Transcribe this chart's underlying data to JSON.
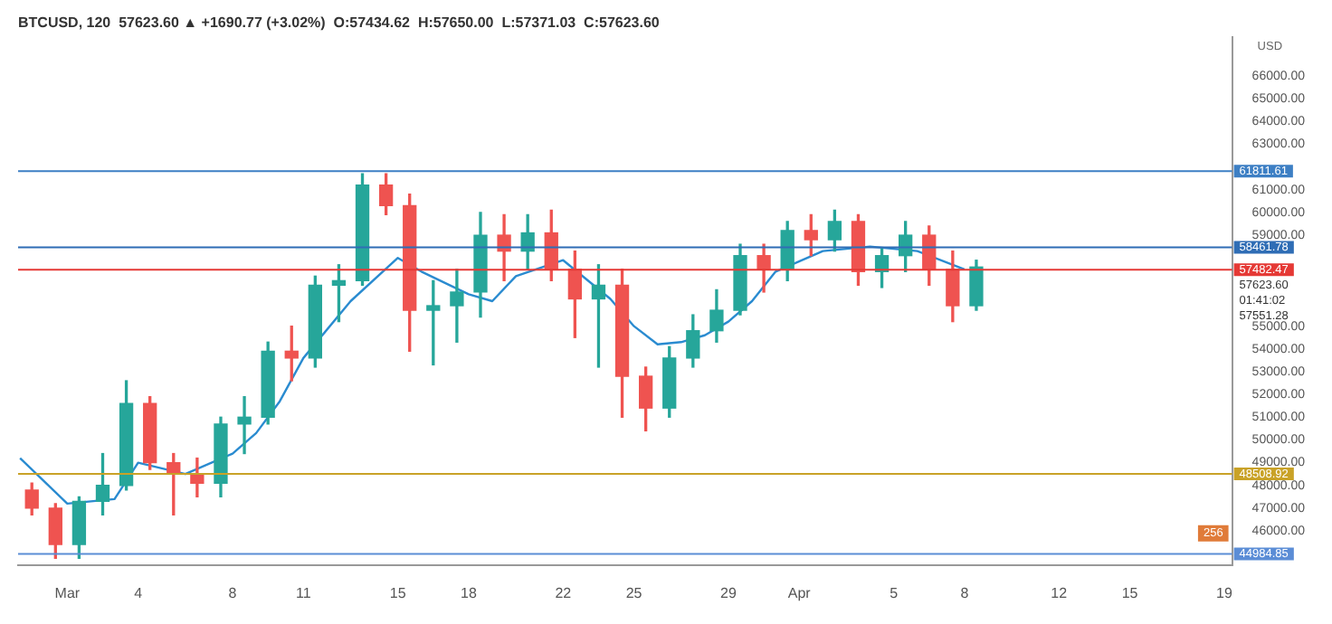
{
  "chart_data": {
    "type": "candlestick",
    "title": "BTCUSD, 120  57623.60 ▲ +1690.77 (+3.02%)  O:57434.62  H:57650.00  L:57371.03  C:57623.60",
    "x": [
      "--02-27T12:00",
      "--02-28T12:00",
      "--03-01T12:00",
      "--03-02T12:00",
      "--03-03T12:00",
      "--03-04T12:00",
      "--03-05T12:00",
      "--03-06T12:00",
      "--03-07T12:00",
      "--03-08T12:00",
      "--03-09T12:00",
      "--03-10T12:00",
      "--03-11T12:00",
      "--03-12T12:00",
      "--03-13T12:00",
      "--03-14T12:00",
      "--03-15T12:00",
      "--03-16T12:00",
      "--03-17T12:00",
      "--03-18T12:00",
      "--03-19T12:00",
      "--03-20T12:00",
      "--03-21T12:00",
      "--03-22T12:00",
      "--03-23T12:00",
      "--03-24T12:00",
      "--03-25T12:00",
      "--03-26T12:00",
      "--03-27T12:00",
      "--03-28T12:00",
      "--03-29T12:00",
      "--03-30T12:00",
      "--03-31T12:00",
      "--04-01T12:00",
      "--04-02T12:00",
      "--04-03T12:00",
      "--04-04T12:00",
      "--04-05T12:00",
      "--04-06T12:00",
      "--04-07T12:00",
      "--04-08T12:00"
    ],
    "ohlc": [
      [
        47800,
        48100,
        46700,
        47000
      ],
      [
        47000,
        47200,
        44800,
        45400
      ],
      [
        45400,
        47500,
        44800,
        47300
      ],
      [
        47300,
        49400,
        46700,
        48000
      ],
      [
        48000,
        52600,
        47800,
        51600
      ],
      [
        51600,
        51900,
        48700,
        49000
      ],
      [
        49000,
        49400,
        46700,
        48500
      ],
      [
        48500,
        49200,
        47500,
        48100
      ],
      [
        48100,
        51000,
        47500,
        50700
      ],
      [
        50700,
        51900,
        49400,
        51000
      ],
      [
        51000,
        54300,
        50700,
        53900
      ],
      [
        53900,
        55000,
        52600,
        53600
      ],
      [
        53600,
        57200,
        53200,
        56800
      ],
      [
        56800,
        57700,
        55200,
        57000
      ],
      [
        57000,
        61700,
        56800,
        61200
      ],
      [
        61200,
        61700,
        59900,
        60300
      ],
      [
        60300,
        60800,
        53900,
        55700
      ],
      [
        55700,
        57000,
        53300,
        55900
      ],
      [
        55900,
        57500,
        54300,
        56500
      ],
      [
        56500,
        60000,
        55400,
        59000
      ],
      [
        59000,
        59900,
        57000,
        58300
      ],
      [
        58300,
        59900,
        57500,
        59100
      ],
      [
        59100,
        60100,
        57000,
        57500
      ],
      [
        57500,
        58300,
        54500,
        56200
      ],
      [
        56200,
        57700,
        53200,
        56800
      ],
      [
        56800,
        57500,
        51000,
        52800
      ],
      [
        52800,
        53200,
        50400,
        51400
      ],
      [
        51400,
        54100,
        51000,
        53600
      ],
      [
        53600,
        55500,
        53200,
        54800
      ],
      [
        54800,
        56600,
        54300,
        55700
      ],
      [
        55700,
        58600,
        55500,
        58100
      ],
      [
        58100,
        58600,
        56500,
        57500
      ],
      [
        57500,
        59600,
        57000,
        59200
      ],
      [
        59200,
        59900,
        58100,
        58800
      ],
      [
        58800,
        60100,
        58300,
        59600
      ],
      [
        59600,
        59900,
        56800,
        57400
      ],
      [
        57400,
        58400,
        56700,
        58100
      ],
      [
        58100,
        59600,
        57400,
        59000
      ],
      [
        59000,
        59400,
        56800,
        57500
      ],
      [
        57500,
        58300,
        55200,
        55900
      ],
      [
        55900,
        57900,
        55700,
        57600
      ]
    ],
    "colors": [
      "#ef5350",
      "#ef5350",
      "#26a69a",
      "#26a69a",
      "#26a69a",
      "#ef5350",
      "#ef5350",
      "#ef5350",
      "#26a69a",
      "#26a69a",
      "#26a69a",
      "#ef5350",
      "#26a69a",
      "#26a69a",
      "#26a69a",
      "#ef5350",
      "#ef5350",
      "#26a69a",
      "#26a69a",
      "#26a69a",
      "#ef5350",
      "#26a69a",
      "#ef5350",
      "#ef5350",
      "#26a69a",
      "#ef5350",
      "#ef5350",
      "#26a69a",
      "#26a69a",
      "#26a69a",
      "#26a69a",
      "#ef5350",
      "#26a69a",
      "#ef5350",
      "#26a69a",
      "#ef5350",
      "#26a69a",
      "#26a69a",
      "#ef5350",
      "#ef5350",
      "#26a69a"
    ],
    "series": [
      {
        "type": "line",
        "color": "#2a8bd0",
        "x": [
          "--02-27",
          "--03-01",
          "--03-03",
          "--03-04",
          "--03-06",
          "--03-08",
          "--03-09",
          "--03-10",
          "--03-11",
          "--03-13",
          "--03-15",
          "--03-16",
          "--03-18",
          "--03-19",
          "--03-20",
          "--03-22",
          "--03-24",
          "--03-25",
          "--03-26",
          "--03-27",
          "--03-28",
          "--03-29",
          "--03-30",
          "--03-31",
          "--04-02",
          "--04-04",
          "--04-06",
          "--04-08"
        ],
        "values": [
          49200,
          47200,
          47400,
          49000,
          48500,
          49400,
          50300,
          51700,
          53600,
          56100,
          58000,
          57400,
          56400,
          56100,
          57200,
          57900,
          56200,
          55000,
          54200,
          54300,
          54600,
          55200,
          56100,
          57400,
          58300,
          58500,
          58300,
          57500
        ]
      }
    ],
    "xlim": [
      "--02-26T22:00",
      "--04-19T08:00"
    ],
    "xticks": [
      {
        "value": "--03-01",
        "label": "Mar"
      },
      {
        "value": "--03-04",
        "label": "4"
      },
      {
        "value": "--03-08",
        "label": "8"
      },
      {
        "value": "--03-11",
        "label": "11"
      },
      {
        "value": "--03-15",
        "label": "15"
      },
      {
        "value": "--03-18",
        "label": "18"
      },
      {
        "value": "--03-22",
        "label": "22"
      },
      {
        "value": "--03-25",
        "label": "25"
      },
      {
        "value": "--03-29",
        "label": "29"
      },
      {
        "value": "--04-01",
        "label": "Apr"
      },
      {
        "value": "--04-05",
        "label": "5"
      },
      {
        "value": "--04-08",
        "label": "8"
      },
      {
        "value": "--04-12",
        "label": "12"
      },
      {
        "value": "--04-15",
        "label": "15"
      },
      {
        "value": "--04-19",
        "label": "19"
      }
    ],
    "ylim": [
      44500,
      67700
    ],
    "yticks": [
      {
        "value": 46000,
        "label": "46000.00"
      },
      {
        "value": 47000,
        "label": "47000.00"
      },
      {
        "value": 48000,
        "label": "48000.00"
      },
      {
        "value": 49000,
        "label": "49000.00"
      },
      {
        "value": 50000,
        "label": "50000.00"
      },
      {
        "value": 51000,
        "label": "51000.00"
      },
      {
        "value": 52000,
        "label": "52000.00"
      },
      {
        "value": 53000,
        "label": "53000.00"
      },
      {
        "value": 54000,
        "label": "54000.00"
      },
      {
        "value": 55000,
        "label": "55000.00"
      },
      {
        "value": 59000,
        "label": "59000.00"
      },
      {
        "value": 60000,
        "label": "60000.00"
      },
      {
        "value": 61000,
        "label": "61000.00"
      },
      {
        "value": 63000,
        "label": "63000.00"
      },
      {
        "value": 64000,
        "label": "64000.00"
      },
      {
        "value": 65000,
        "label": "65000.00"
      },
      {
        "value": 66000,
        "label": "66000.00"
      }
    ],
    "ref_lines": [
      {
        "axis": "y",
        "value": 61811.61,
        "label": "61811.61",
        "color": "#3d7fc4"
      },
      {
        "axis": "y",
        "value": 58461.78,
        "label": "58461.78",
        "color": "#2f6db5"
      },
      {
        "axis": "y",
        "value": 57482.47,
        "label": "57482.47",
        "color": "#e53935"
      },
      {
        "axis": "y",
        "value": 48508.92,
        "label": "48508.92",
        "color": "#c9a227"
      },
      {
        "axis": "y",
        "value": 44984.85,
        "label": "44984.85",
        "color": "#5b8dd6"
      }
    ],
    "annotations": [
      "USD",
      "57623.60",
      "01:41:02",
      "57551.28",
      "256"
    ],
    "grid": false,
    "legend": false
  }
}
